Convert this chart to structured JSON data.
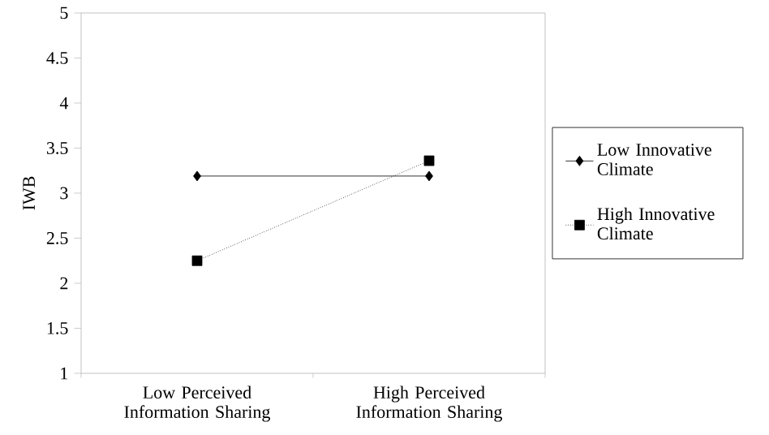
{
  "chart_data": {
    "type": "line",
    "ylabel": "IWB",
    "categories": [
      "Low Perceived Information Sharing",
      "High Perceived Information Sharing"
    ],
    "series": [
      {
        "name": "Low Innovative Climate",
        "color": "#000000",
        "values": [
          3.19,
          3.19
        ],
        "marker": "diamond",
        "line_style": "solid"
      },
      {
        "name": "High Innovative Climate",
        "color": "#000000",
        "values": [
          2.25,
          3.36
        ],
        "marker": "square",
        "line_style": "dotted"
      }
    ],
    "ylim": [
      1,
      5
    ],
    "yticks": [
      1,
      1.5,
      2,
      2.5,
      3,
      3.5,
      4,
      4.5,
      5
    ],
    "grid": false,
    "legend": "right"
  }
}
